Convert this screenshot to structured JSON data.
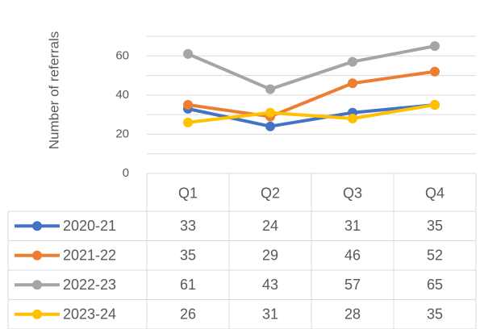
{
  "chart_data": {
    "type": "line",
    "y_label": "Number of referrals",
    "categories": [
      "Q1",
      "Q2",
      "Q3",
      "Q4"
    ],
    "series": [
      {
        "name": "2020-21",
        "color": "#4472c4",
        "values": [
          33,
          24,
          31,
          35
        ]
      },
      {
        "name": "2021-22",
        "color": "#ed7d31",
        "values": [
          35,
          29,
          46,
          52
        ]
      },
      {
        "name": "2022-23",
        "color": "#a5a5a5",
        "values": [
          61,
          43,
          57,
          65
        ]
      },
      {
        "name": "2023-24",
        "color": "#ffc000",
        "values": [
          26,
          31,
          28,
          35
        ]
      }
    ],
    "ylim": [
      0,
      70
    ],
    "yticks": [
      0,
      20,
      40,
      60
    ],
    "ygrid": [
      10,
      20,
      30,
      40,
      50,
      60,
      70
    ],
    "grid": true,
    "data_table": true
  }
}
